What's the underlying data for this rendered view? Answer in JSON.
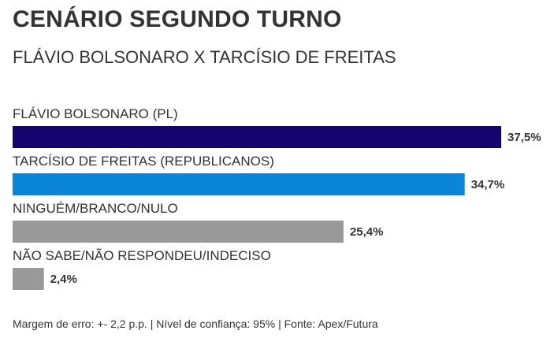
{
  "header": {
    "title": "CENÁRIO SEGUNDO TURNO",
    "subtitle": "FLÁVIO BOLSONARO X TARCÍSIO DE FREITAS"
  },
  "chart_data": {
    "type": "bar",
    "orientation": "horizontal",
    "title": "CENÁRIO SEGUNDO TURNO",
    "subtitle": "FLÁVIO BOLSONARO X TARCÍSIO DE FREITAS",
    "categories": [
      "FLÁVIO BOLSONARO (PL)",
      "TARCÍSIO DE FREITAS (REPUBLICANOS)",
      "NINGUÉM/BRANCO/NULO",
      "NÃO SABE/NÃO RESPONDEU/INDECISO"
    ],
    "values": [
      37.5,
      34.7,
      25.4,
      2.4
    ],
    "value_labels": [
      "37,5%",
      "34,7%",
      "25,4%",
      "2,4%"
    ],
    "colors": [
      "#15036e",
      "#0a86d8",
      "#999999",
      "#999999"
    ],
    "xlim": [
      0,
      37.5
    ],
    "grid": false,
    "legend": "none"
  },
  "footer": {
    "source": "Margem de erro: +- 2,2 p.p. | Nível de confiança: 95% | Fonte: Apex/Futura"
  }
}
